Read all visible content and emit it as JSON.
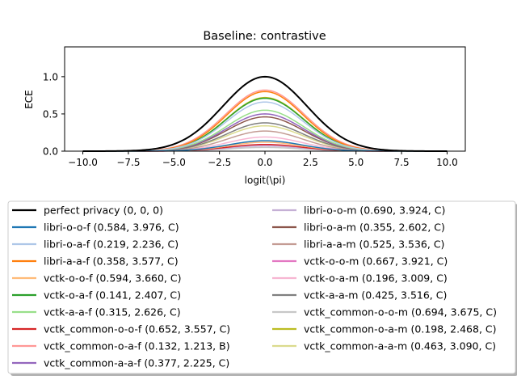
{
  "chart_data": {
    "type": "line",
    "title": "Baseline: contrastive",
    "xlabel": "logit(\\pi)",
    "ylabel": "ECE",
    "xlim": [
      -11,
      11
    ],
    "ylim": [
      0,
      1.4
    ],
    "xticks": [
      -10.0,
      -7.5,
      -5.0,
      -2.5,
      0.0,
      2.5,
      5.0,
      7.5,
      10.0
    ],
    "xtick_labels": [
      "−10.0",
      "−7.5",
      "−5.0",
      "−2.5",
      "0.0",
      "2.5",
      "5.0",
      "7.5",
      "10.0"
    ],
    "yticks": [
      0.0,
      0.5,
      1.0
    ],
    "ytick_labels": [
      "0.0",
      "0.5",
      "1.0"
    ],
    "x_range": [
      -10,
      10
    ],
    "grid": false,
    "legend_placement": "below the plot, two columns",
    "series": [
      {
        "name": "perfect privacy (0, 0, 0)",
        "color": "#000000",
        "peak": 1.0,
        "width": 2.3
      },
      {
        "name": "libri-o-o-f (0.584, 3.976, C)",
        "color": "#1f77b4",
        "peak": 0.14,
        "width": 2.0
      },
      {
        "name": "libri-o-a-f (0.219, 2.236, C)",
        "color": "#aec7e8",
        "peak": 0.66,
        "width": 2.1
      },
      {
        "name": "libri-a-a-f (0.358, 3.577, C)",
        "color": "#ff7f0e",
        "peak": 0.8,
        "width": 2.1
      },
      {
        "name": "vctk-o-o-f (0.594, 3.660, C)",
        "color": "#ffbb78",
        "peak": 0.12,
        "width": 2.0
      },
      {
        "name": "vctk-o-a-f (0.141, 2.407, C)",
        "color": "#2ca02c",
        "peak": 0.71,
        "width": 2.1
      },
      {
        "name": "vctk-a-a-f (0.315, 2.626, C)",
        "color": "#98df8a",
        "peak": 0.55,
        "width": 2.1
      },
      {
        "name": "vctk_common-o-o-f (0.652, 3.557, C)",
        "color": "#d62728",
        "peak": 0.09,
        "width": 2.0
      },
      {
        "name": "vctk_common-o-a-f (0.132, 1.213, B)",
        "color": "#ff9896",
        "peak": 0.82,
        "width": 2.15
      },
      {
        "name": "vctk_common-a-a-f (0.377, 2.225, C)",
        "color": "#9467bd",
        "peak": 0.5,
        "width": 2.1
      },
      {
        "name": "libri-o-o-m (0.690, 3.924, C)",
        "color": "#c5b0d5",
        "peak": 0.07,
        "width": 2.0
      },
      {
        "name": "libri-o-a-m (0.355, 2.602, C)",
        "color": "#8c564b",
        "peak": 0.46,
        "width": 2.1
      },
      {
        "name": "libri-a-a-m (0.525, 3.536, C)",
        "color": "#c49c94",
        "peak": 0.27,
        "width": 2.05
      },
      {
        "name": "vctk-o-o-m (0.667, 3.921, C)",
        "color": "#e377c2",
        "peak": 0.08,
        "width": 2.0
      },
      {
        "name": "vctk-o-a-m (0.196, 3.009, C)",
        "color": "#f7b6d2",
        "peak": 0.19,
        "width": 2.05
      },
      {
        "name": "vctk-a-a-m (0.425, 3.516, C)",
        "color": "#7f7f7f",
        "peak": 0.38,
        "width": 2.1
      },
      {
        "name": "vctk_common-o-o-m (0.694, 3.675, C)",
        "color": "#c7c7c7",
        "peak": 0.05,
        "width": 2.0
      },
      {
        "name": "vctk_common-o-a-m (0.198, 2.468, C)",
        "color": "#bcbd22",
        "peak": 0.72,
        "width": 2.1
      },
      {
        "name": "vctk_common-a-a-m (0.463, 3.090, C)",
        "color": "#dbdb8d",
        "peak": 0.34,
        "width": 2.1
      }
    ]
  }
}
